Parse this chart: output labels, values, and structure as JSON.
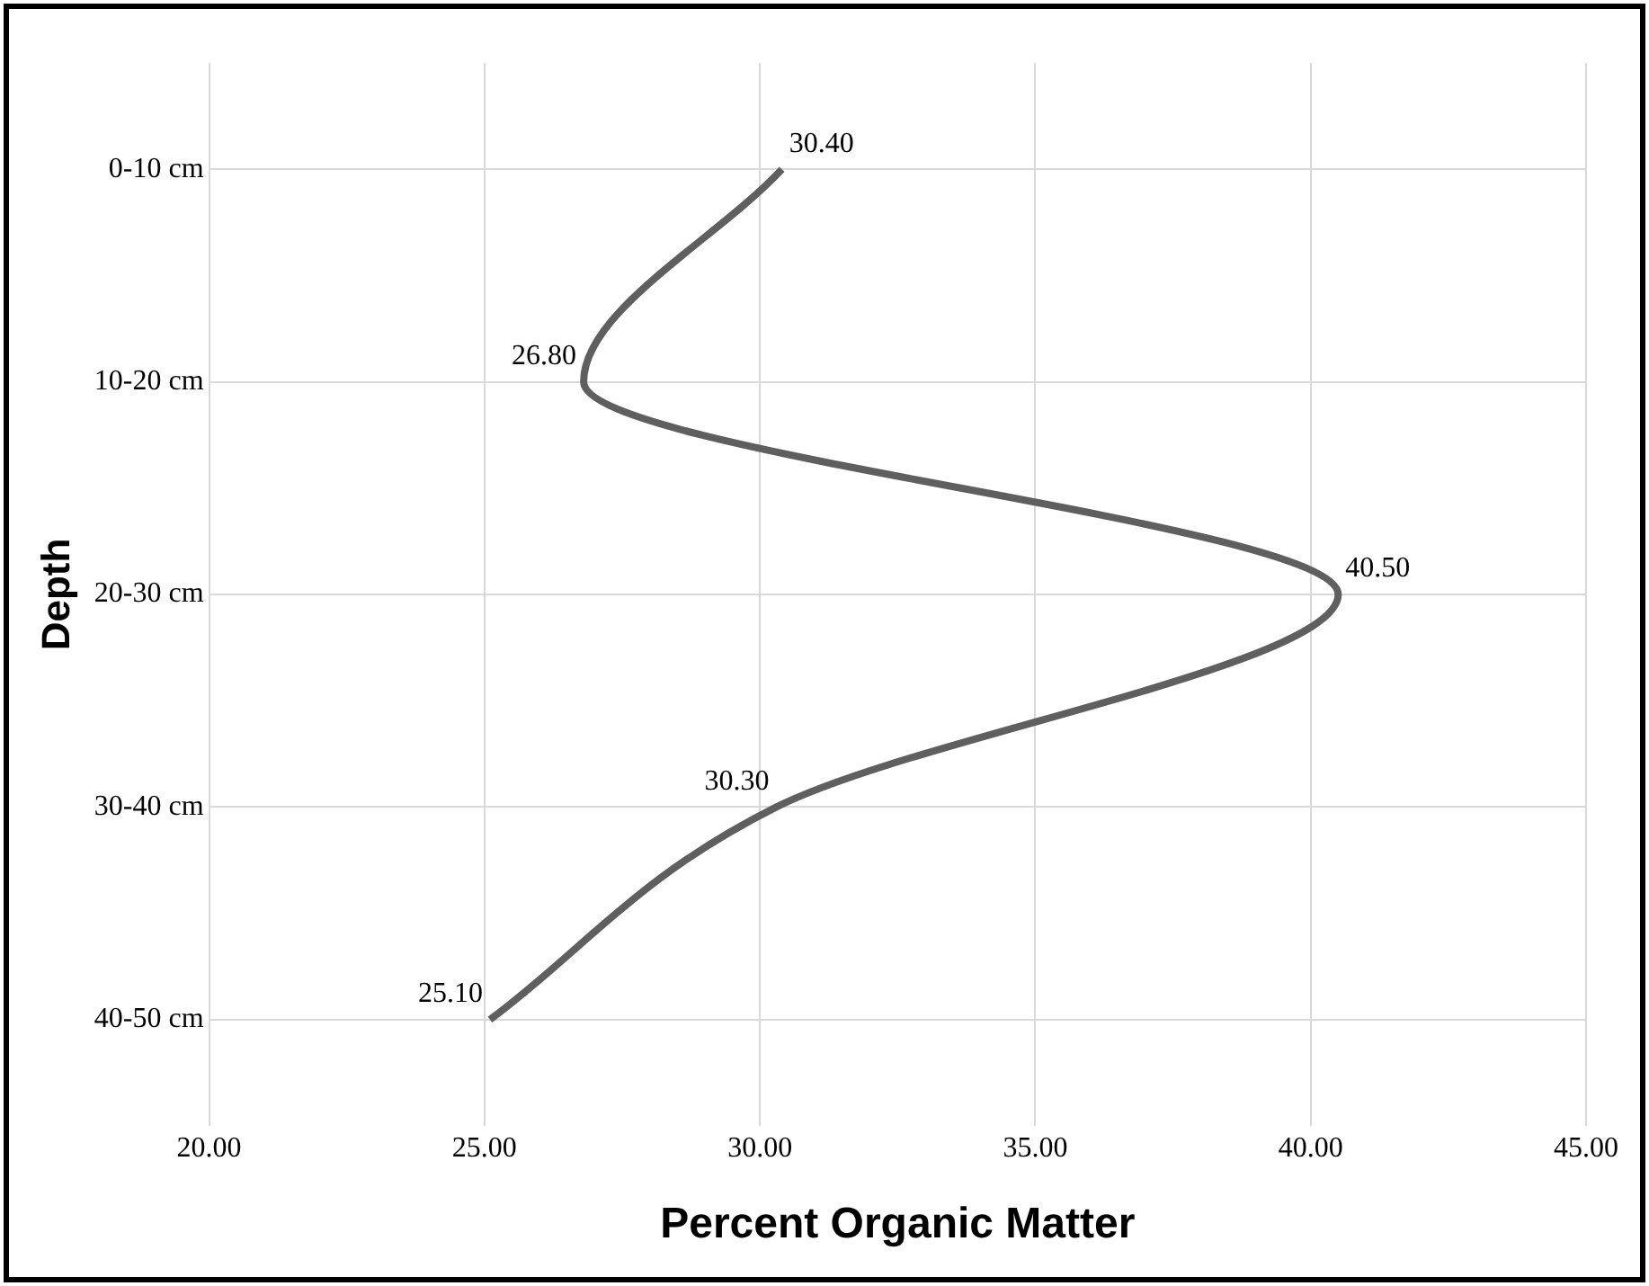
{
  "chart_data": {
    "type": "line",
    "orientation": "horizontal",
    "xlabel": "Percent Organic Matter",
    "ylabel": "Depth",
    "categories": [
      "0-10 cm",
      "10-20 cm",
      "20-30 cm",
      "30-40 cm",
      "40-50 cm"
    ],
    "values": [
      30.4,
      26.8,
      40.5,
      30.3,
      25.1
    ],
    "value_labels": [
      "30.40",
      "26.80",
      "40.50",
      "30.30",
      "25.10"
    ],
    "color": "#5f5f5f",
    "marker": "none",
    "grid": true,
    "xlim": [
      20,
      45
    ],
    "xticks": [
      {
        "value": 20,
        "label": "20.00"
      },
      {
        "value": 25,
        "label": "25.00"
      },
      {
        "value": 30,
        "label": "30.00"
      },
      {
        "value": 35,
        "label": "35.00"
      },
      {
        "value": 40,
        "label": "40.00"
      },
      {
        "value": 45,
        "label": "45.00"
      }
    ]
  }
}
